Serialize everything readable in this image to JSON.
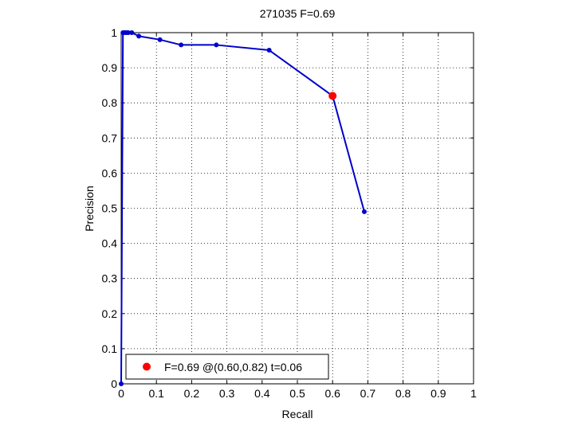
{
  "chart_data": {
    "type": "line",
    "title": "271035 F=0.69",
    "xlabel": "Recall",
    "ylabel": "Precision",
    "xlim": [
      0,
      1
    ],
    "ylim": [
      0,
      1
    ],
    "xticks": [
      "0",
      "0.1",
      "0.2",
      "0.3",
      "0.4",
      "0.5",
      "0.6",
      "0.7",
      "0.8",
      "0.9",
      "1"
    ],
    "yticks": [
      "0",
      "0.1",
      "0.2",
      "0.3",
      "0.4",
      "0.5",
      "0.6",
      "0.7",
      "0.8",
      "0.9",
      "1"
    ],
    "grid": true,
    "legend_position": "bottom-left",
    "series": [
      {
        "color": "#0000cc",
        "x": [
          0,
          0.005,
          0.01,
          0.015,
          0.02,
          0.03,
          0.05,
          0.11,
          0.17,
          0.27,
          0.42,
          0.6,
          0.69
        ],
        "y": [
          0,
          1,
          1,
          1,
          1,
          1,
          0.99,
          0.98,
          0.965,
          0.965,
          0.95,
          0.82,
          0.49
        ]
      }
    ],
    "highlight": {
      "x": 0.6,
      "y": 0.82,
      "color": "#ff0000",
      "legend_text": "F=0.69 @(0.60,0.82) t=0.06"
    }
  }
}
